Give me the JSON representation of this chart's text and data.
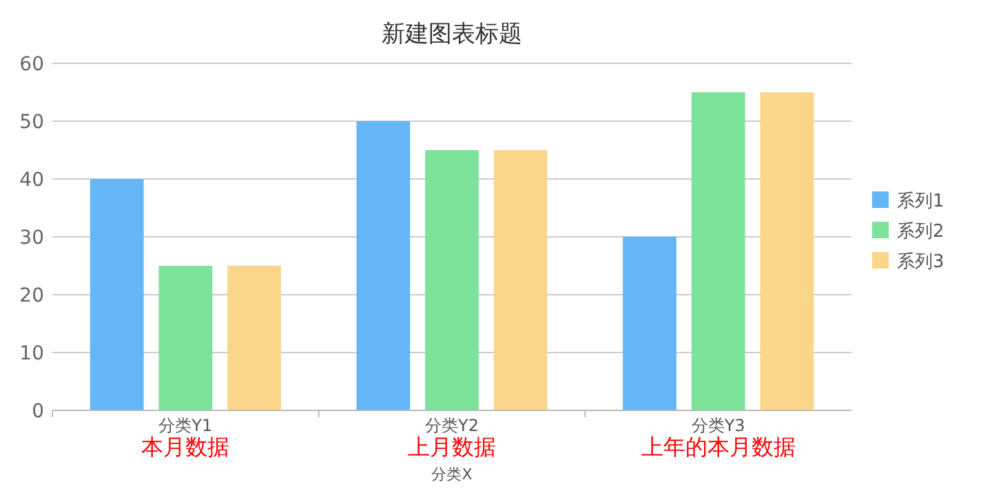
{
  "chart_data": {
    "type": "bar",
    "title": "新建图表标题",
    "xlabel": "分类X",
    "categories": [
      "分类Y1",
      "分类Y2",
      "分类Y3"
    ],
    "series": [
      {
        "name": "系列1",
        "color": "#64b6f7",
        "values": [
          40,
          50,
          30
        ]
      },
      {
        "name": "系列2",
        "color": "#7de29a",
        "values": [
          25,
          45,
          55
        ]
      },
      {
        "name": "系列3",
        "color": "#fad68a",
        "values": [
          25,
          45,
          55
        ]
      }
    ],
    "ylim": [
      0,
      60
    ],
    "yticks": [
      0,
      10,
      20,
      30,
      40,
      50,
      60
    ],
    "grid": "y",
    "legend": "right",
    "annotations": [
      "本月数据",
      "上月数据",
      "上年的本月数据"
    ]
  }
}
